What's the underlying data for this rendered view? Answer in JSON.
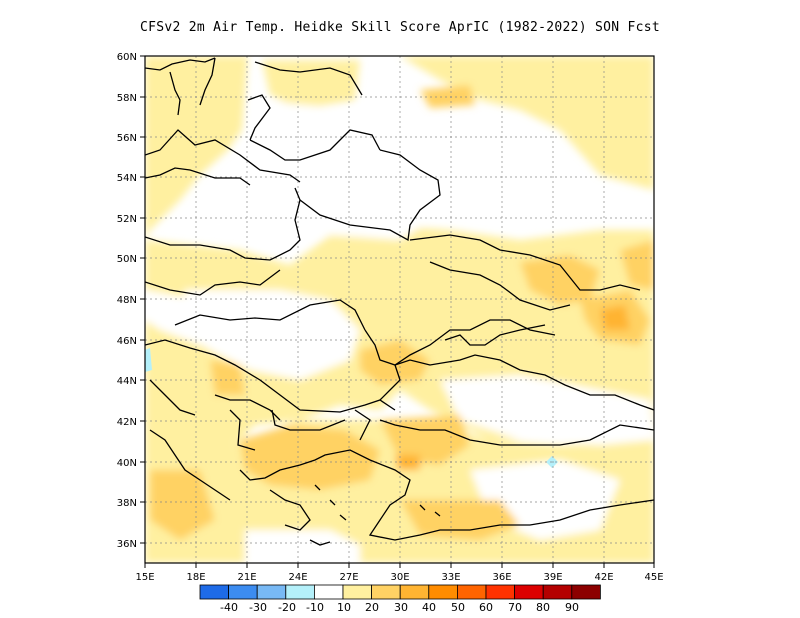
{
  "title": "CFSv2  2m Air Temp. Heidke Skill Score AprIC (1982-2022) SON Fcst",
  "map": {
    "lon_labels": [
      "15E",
      "18E",
      "21E",
      "24E",
      "27E",
      "30E",
      "33E",
      "36E",
      "39E",
      "42E",
      "45E"
    ],
    "lat_labels": [
      "60N",
      "58N",
      "56N",
      "54N",
      "52N",
      "50N",
      "48N",
      "46N",
      "44N",
      "42N",
      "40N",
      "38N",
      "36N"
    ],
    "lon_range": [
      15,
      45
    ],
    "lat_range": [
      35,
      60
    ],
    "grid": "dotted"
  },
  "colorbar": {
    "labels": [
      "-40",
      "-30",
      "-20",
      "-10",
      "10",
      "20",
      "30",
      "40",
      "50",
      "60",
      "70",
      "80",
      "90"
    ],
    "colors": [
      "#1e6be8",
      "#3c8cf0",
      "#78b9f5",
      "#b4f0fa",
      "#ffffff",
      "#fff0a0",
      "#ffd264",
      "#ffb432",
      "#ff8c00",
      "#ff6400",
      "#ff3200",
      "#dc0000",
      "#b40000",
      "#8c0000"
    ]
  }
}
